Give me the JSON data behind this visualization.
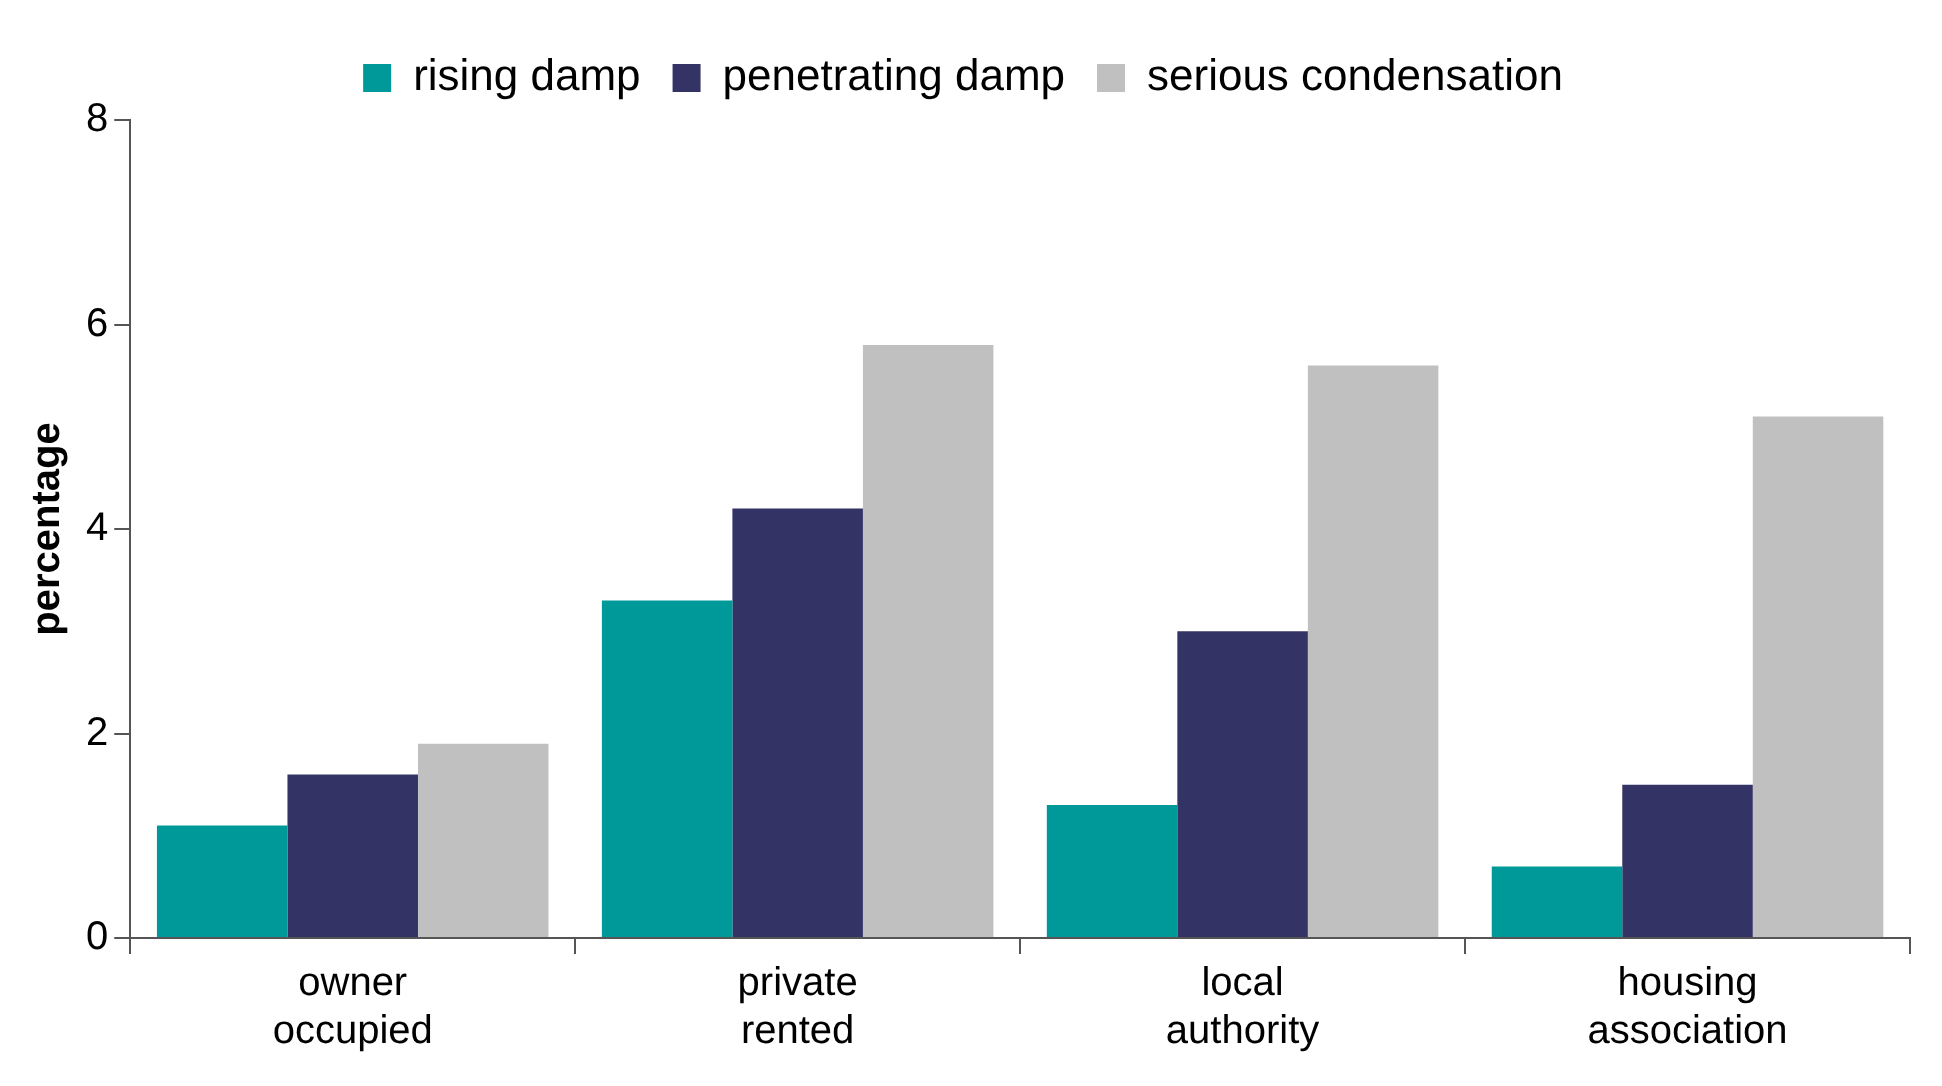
{
  "chart_data": {
    "type": "bar",
    "ylabel": "percentage",
    "categories": [
      "owner occupied",
      "private rented",
      "local authority",
      "housing association"
    ],
    "series": [
      {
        "name": "rising damp",
        "color": "#009999",
        "values": [
          1.1,
          3.3,
          1.3,
          0.7
        ]
      },
      {
        "name": "penetrating damp",
        "color": "#333366",
        "values": [
          1.6,
          4.2,
          3.0,
          1.5
        ]
      },
      {
        "name": "serious condensation",
        "color": "#c0c0c0",
        "values": [
          1.9,
          5.8,
          5.6,
          5.1
        ]
      }
    ],
    "ylim": [
      0,
      8
    ],
    "yticks": [
      0,
      2,
      4,
      6,
      8
    ],
    "legend": "top",
    "grid": false
  }
}
